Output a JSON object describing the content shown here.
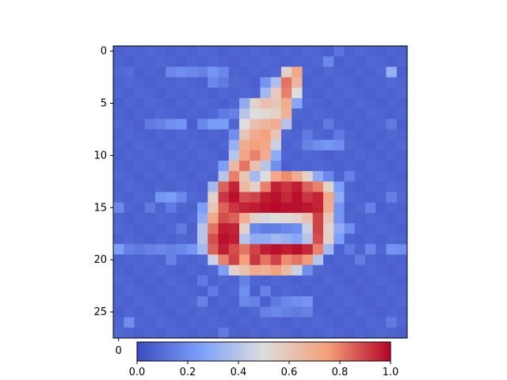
{
  "chart_data": {
    "type": "heatmap",
    "colormap": "coolwarm",
    "rows": 28,
    "cols": 28,
    "ylim": [
      27.5,
      -0.5
    ],
    "xlim": [
      -0.5,
      27.5
    ],
    "y_ticks": [
      "0",
      "5",
      "10",
      "15",
      "20",
      "25"
    ],
    "x_ticks": [
      "0"
    ],
    "colorbar": {
      "orientation": "horizontal",
      "range": [
        0.0,
        1.0
      ],
      "ticks": [
        "0.0",
        "0.2",
        "0.4",
        "0.6",
        "0.8",
        "1.0"
      ]
    },
    "background_level": 0.06,
    "values_sparse": [
      [
        0,
        21,
        0.12
      ],
      [
        1,
        20,
        0.18
      ],
      [
        2,
        1,
        0.1
      ],
      [
        2,
        5,
        0.18
      ],
      [
        2,
        6,
        0.2
      ],
      [
        2,
        7,
        0.18
      ],
      [
        2,
        8,
        0.16
      ],
      [
        2,
        9,
        0.22
      ],
      [
        2,
        10,
        0.18
      ],
      [
        2,
        16,
        0.55
      ],
      [
        2,
        17,
        0.72
      ],
      [
        2,
        26,
        0.32
      ],
      [
        3,
        9,
        0.18
      ],
      [
        3,
        10,
        0.14
      ],
      [
        3,
        14,
        0.22
      ],
      [
        3,
        15,
        0.38
      ],
      [
        3,
        16,
        0.82
      ],
      [
        3,
        17,
        0.66
      ],
      [
        4,
        14,
        0.35
      ],
      [
        4,
        15,
        0.58
      ],
      [
        4,
        16,
        0.8
      ],
      [
        4,
        17,
        0.5
      ],
      [
        5,
        12,
        0.3
      ],
      [
        5,
        13,
        0.55
      ],
      [
        5,
        14,
        0.62
      ],
      [
        5,
        15,
        0.6
      ],
      [
        5,
        16,
        0.7
      ],
      [
        5,
        17,
        0.28
      ],
      [
        6,
        10,
        0.14
      ],
      [
        6,
        11,
        0.16
      ],
      [
        6,
        12,
        0.4
      ],
      [
        6,
        13,
        0.5
      ],
      [
        6,
        14,
        0.52
      ],
      [
        6,
        15,
        0.55
      ],
      [
        6,
        16,
        0.68
      ],
      [
        7,
        3,
        0.14
      ],
      [
        7,
        4,
        0.16
      ],
      [
        7,
        5,
        0.2
      ],
      [
        7,
        6,
        0.22
      ],
      [
        7,
        8,
        0.18
      ],
      [
        7,
        9,
        0.24
      ],
      [
        7,
        10,
        0.24
      ],
      [
        7,
        12,
        0.5
      ],
      [
        7,
        13,
        0.62
      ],
      [
        7,
        14,
        0.66
      ],
      [
        7,
        15,
        0.7
      ],
      [
        7,
        16,
        0.4
      ],
      [
        7,
        20,
        0.14
      ],
      [
        7,
        26,
        0.14
      ],
      [
        8,
        11,
        0.2
      ],
      [
        8,
        12,
        0.6
      ],
      [
        8,
        13,
        0.7
      ],
      [
        8,
        14,
        0.74
      ],
      [
        8,
        15,
        0.6
      ],
      [
        8,
        18,
        0.14
      ],
      [
        8,
        21,
        0.14
      ],
      [
        9,
        11,
        0.32
      ],
      [
        9,
        12,
        0.7
      ],
      [
        9,
        13,
        0.74
      ],
      [
        9,
        14,
        0.72
      ],
      [
        9,
        15,
        0.45
      ],
      [
        9,
        18,
        0.16
      ],
      [
        9,
        19,
        0.2
      ],
      [
        9,
        20,
        0.22
      ],
      [
        9,
        21,
        0.2
      ],
      [
        10,
        11,
        0.4
      ],
      [
        10,
        12,
        0.72
      ],
      [
        10,
        13,
        0.8
      ],
      [
        10,
        14,
        0.7
      ],
      [
        10,
        15,
        0.3
      ],
      [
        11,
        10,
        0.25
      ],
      [
        11,
        11,
        0.65
      ],
      [
        11,
        12,
        0.82
      ],
      [
        11,
        13,
        0.62
      ],
      [
        11,
        14,
        0.4
      ],
      [
        11,
        15,
        0.2
      ],
      [
        12,
        10,
        0.4
      ],
      [
        12,
        11,
        0.8
      ],
      [
        12,
        12,
        0.6
      ],
      [
        12,
        13,
        0.35
      ],
      [
        12,
        14,
        0.5
      ],
      [
        12,
        15,
        0.72
      ],
      [
        12,
        16,
        0.78
      ],
      [
        12,
        17,
        0.7
      ],
      [
        12,
        18,
        0.55
      ],
      [
        12,
        19,
        0.3
      ],
      [
        12,
        20,
        0.18
      ],
      [
        12,
        22,
        0.16
      ],
      [
        13,
        9,
        0.35
      ],
      [
        13,
        10,
        0.85
      ],
      [
        13,
        11,
        0.95
      ],
      [
        13,
        12,
        0.65
      ],
      [
        13,
        13,
        0.55
      ],
      [
        13,
        14,
        0.8
      ],
      [
        13,
        15,
        0.95
      ],
      [
        13,
        16,
        0.92
      ],
      [
        13,
        17,
        0.96
      ],
      [
        13,
        18,
        0.85
      ],
      [
        13,
        19,
        0.8
      ],
      [
        13,
        20,
        0.55
      ],
      [
        13,
        21,
        0.25
      ],
      [
        14,
        4,
        0.22
      ],
      [
        14,
        5,
        0.24
      ],
      [
        14,
        6,
        0.18
      ],
      [
        14,
        9,
        0.55
      ],
      [
        14,
        10,
        0.92
      ],
      [
        14,
        11,
        0.98
      ],
      [
        14,
        12,
        0.88
      ],
      [
        14,
        13,
        0.9
      ],
      [
        14,
        14,
        0.96
      ],
      [
        14,
        15,
        0.98
      ],
      [
        14,
        16,
        0.94
      ],
      [
        14,
        17,
        0.98
      ],
      [
        14,
        18,
        0.92
      ],
      [
        14,
        19,
        0.95
      ],
      [
        14,
        20,
        0.72
      ],
      [
        14,
        21,
        0.3
      ],
      [
        14,
        26,
        0.16
      ],
      [
        15,
        0,
        0.18
      ],
      [
        15,
        3,
        0.14
      ],
      [
        15,
        5,
        0.14
      ],
      [
        15,
        8,
        0.25
      ],
      [
        15,
        9,
        0.6
      ],
      [
        15,
        10,
        0.85
      ],
      [
        15,
        11,
        0.92
      ],
      [
        15,
        12,
        0.95
      ],
      [
        15,
        13,
        0.96
      ],
      [
        15,
        14,
        0.98
      ],
      [
        15,
        15,
        0.99
      ],
      [
        15,
        16,
        0.98
      ],
      [
        15,
        17,
        0.98
      ],
      [
        15,
        18,
        0.97
      ],
      [
        15,
        19,
        0.95
      ],
      [
        15,
        20,
        0.7
      ],
      [
        15,
        21,
        0.22
      ],
      [
        15,
        24,
        0.16
      ],
      [
        16,
        8,
        0.3
      ],
      [
        16,
        9,
        0.72
      ],
      [
        16,
        10,
        0.88
      ],
      [
        16,
        11,
        0.85
      ],
      [
        16,
        12,
        0.7
      ],
      [
        16,
        13,
        0.55
      ],
      [
        16,
        14,
        0.48
      ],
      [
        16,
        15,
        0.5
      ],
      [
        16,
        16,
        0.52
      ],
      [
        16,
        17,
        0.55
      ],
      [
        16,
        18,
        0.62
      ],
      [
        16,
        19,
        0.9
      ],
      [
        16,
        20,
        0.6
      ],
      [
        16,
        21,
        0.22
      ],
      [
        17,
        6,
        0.14
      ],
      [
        17,
        8,
        0.4
      ],
      [
        17,
        9,
        0.82
      ],
      [
        17,
        10,
        0.96
      ],
      [
        17,
        11,
        0.95
      ],
      [
        17,
        12,
        0.55
      ],
      [
        17,
        13,
        0.18
      ],
      [
        17,
        14,
        0.15
      ],
      [
        17,
        15,
        0.15
      ],
      [
        17,
        16,
        0.18
      ],
      [
        17,
        17,
        0.2
      ],
      [
        17,
        18,
        0.45
      ],
      [
        17,
        19,
        0.9
      ],
      [
        17,
        20,
        0.55
      ],
      [
        17,
        21,
        0.3
      ],
      [
        17,
        22,
        0.2
      ],
      [
        18,
        8,
        0.4
      ],
      [
        18,
        9,
        0.88
      ],
      [
        18,
        10,
        0.98
      ],
      [
        18,
        11,
        0.96
      ],
      [
        18,
        12,
        0.4
      ],
      [
        18,
        13,
        0.3
      ],
      [
        18,
        14,
        0.3
      ],
      [
        18,
        15,
        0.35
      ],
      [
        18,
        16,
        0.32
      ],
      [
        18,
        17,
        0.28
      ],
      [
        18,
        18,
        0.4
      ],
      [
        18,
        19,
        0.88
      ],
      [
        18,
        20,
        0.55
      ],
      [
        18,
        21,
        0.25
      ],
      [
        19,
        0,
        0.25
      ],
      [
        19,
        1,
        0.16
      ],
      [
        19,
        2,
        0.14
      ],
      [
        19,
        3,
        0.16
      ],
      [
        19,
        4,
        0.18
      ],
      [
        19,
        5,
        0.16
      ],
      [
        19,
        6,
        0.18
      ],
      [
        19,
        7,
        0.22
      ],
      [
        19,
        8,
        0.35
      ],
      [
        19,
        9,
        0.85
      ],
      [
        19,
        10,
        0.96
      ],
      [
        19,
        11,
        0.88
      ],
      [
        19,
        12,
        0.82
      ],
      [
        19,
        13,
        0.9
      ],
      [
        19,
        14,
        0.96
      ],
      [
        19,
        15,
        0.98
      ],
      [
        19,
        16,
        0.96
      ],
      [
        19,
        17,
        0.98
      ],
      [
        19,
        18,
        0.94
      ],
      [
        19,
        19,
        0.8
      ],
      [
        19,
        20,
        0.35
      ],
      [
        19,
        22,
        0.14
      ],
      [
        19,
        24,
        0.18
      ],
      [
        19,
        26,
        0.22
      ],
      [
        19,
        27,
        0.2
      ],
      [
        20,
        5,
        0.16
      ],
      [
        20,
        9,
        0.45
      ],
      [
        20,
        10,
        0.8
      ],
      [
        20,
        11,
        0.9
      ],
      [
        20,
        12,
        0.75
      ],
      [
        20,
        13,
        0.92
      ],
      [
        20,
        14,
        0.82
      ],
      [
        20,
        15,
        0.9
      ],
      [
        20,
        16,
        0.78
      ],
      [
        20,
        17,
        0.82
      ],
      [
        20,
        18,
        0.76
      ],
      [
        20,
        19,
        0.4
      ],
      [
        20,
        23,
        0.14
      ],
      [
        21,
        10,
        0.25
      ],
      [
        21,
        11,
        0.55
      ],
      [
        21,
        12,
        0.62
      ],
      [
        21,
        13,
        0.7
      ],
      [
        21,
        14,
        0.68
      ],
      [
        21,
        15,
        0.74
      ],
      [
        21,
        16,
        0.65
      ],
      [
        21,
        17,
        0.45
      ],
      [
        21,
        18,
        0.2
      ],
      [
        22,
        8,
        0.14
      ],
      [
        22,
        12,
        0.16
      ],
      [
        23,
        9,
        0.14
      ],
      [
        23,
        12,
        0.2
      ],
      [
        23,
        14,
        0.16
      ],
      [
        24,
        8,
        0.16
      ],
      [
        24,
        12,
        0.18
      ],
      [
        24,
        13,
        0.16
      ],
      [
        24,
        15,
        0.14
      ],
      [
        24,
        16,
        0.18
      ],
      [
        24,
        17,
        0.2
      ],
      [
        24,
        18,
        0.22
      ],
      [
        25,
        14,
        0.16
      ],
      [
        25,
        15,
        0.18
      ],
      [
        25,
        16,
        0.16
      ],
      [
        25,
        17,
        0.14
      ],
      [
        25,
        18,
        0.16
      ],
      [
        26,
        1,
        0.2
      ],
      [
        26,
        26,
        0.14
      ],
      [
        27,
        10,
        0.14
      ]
    ]
  }
}
